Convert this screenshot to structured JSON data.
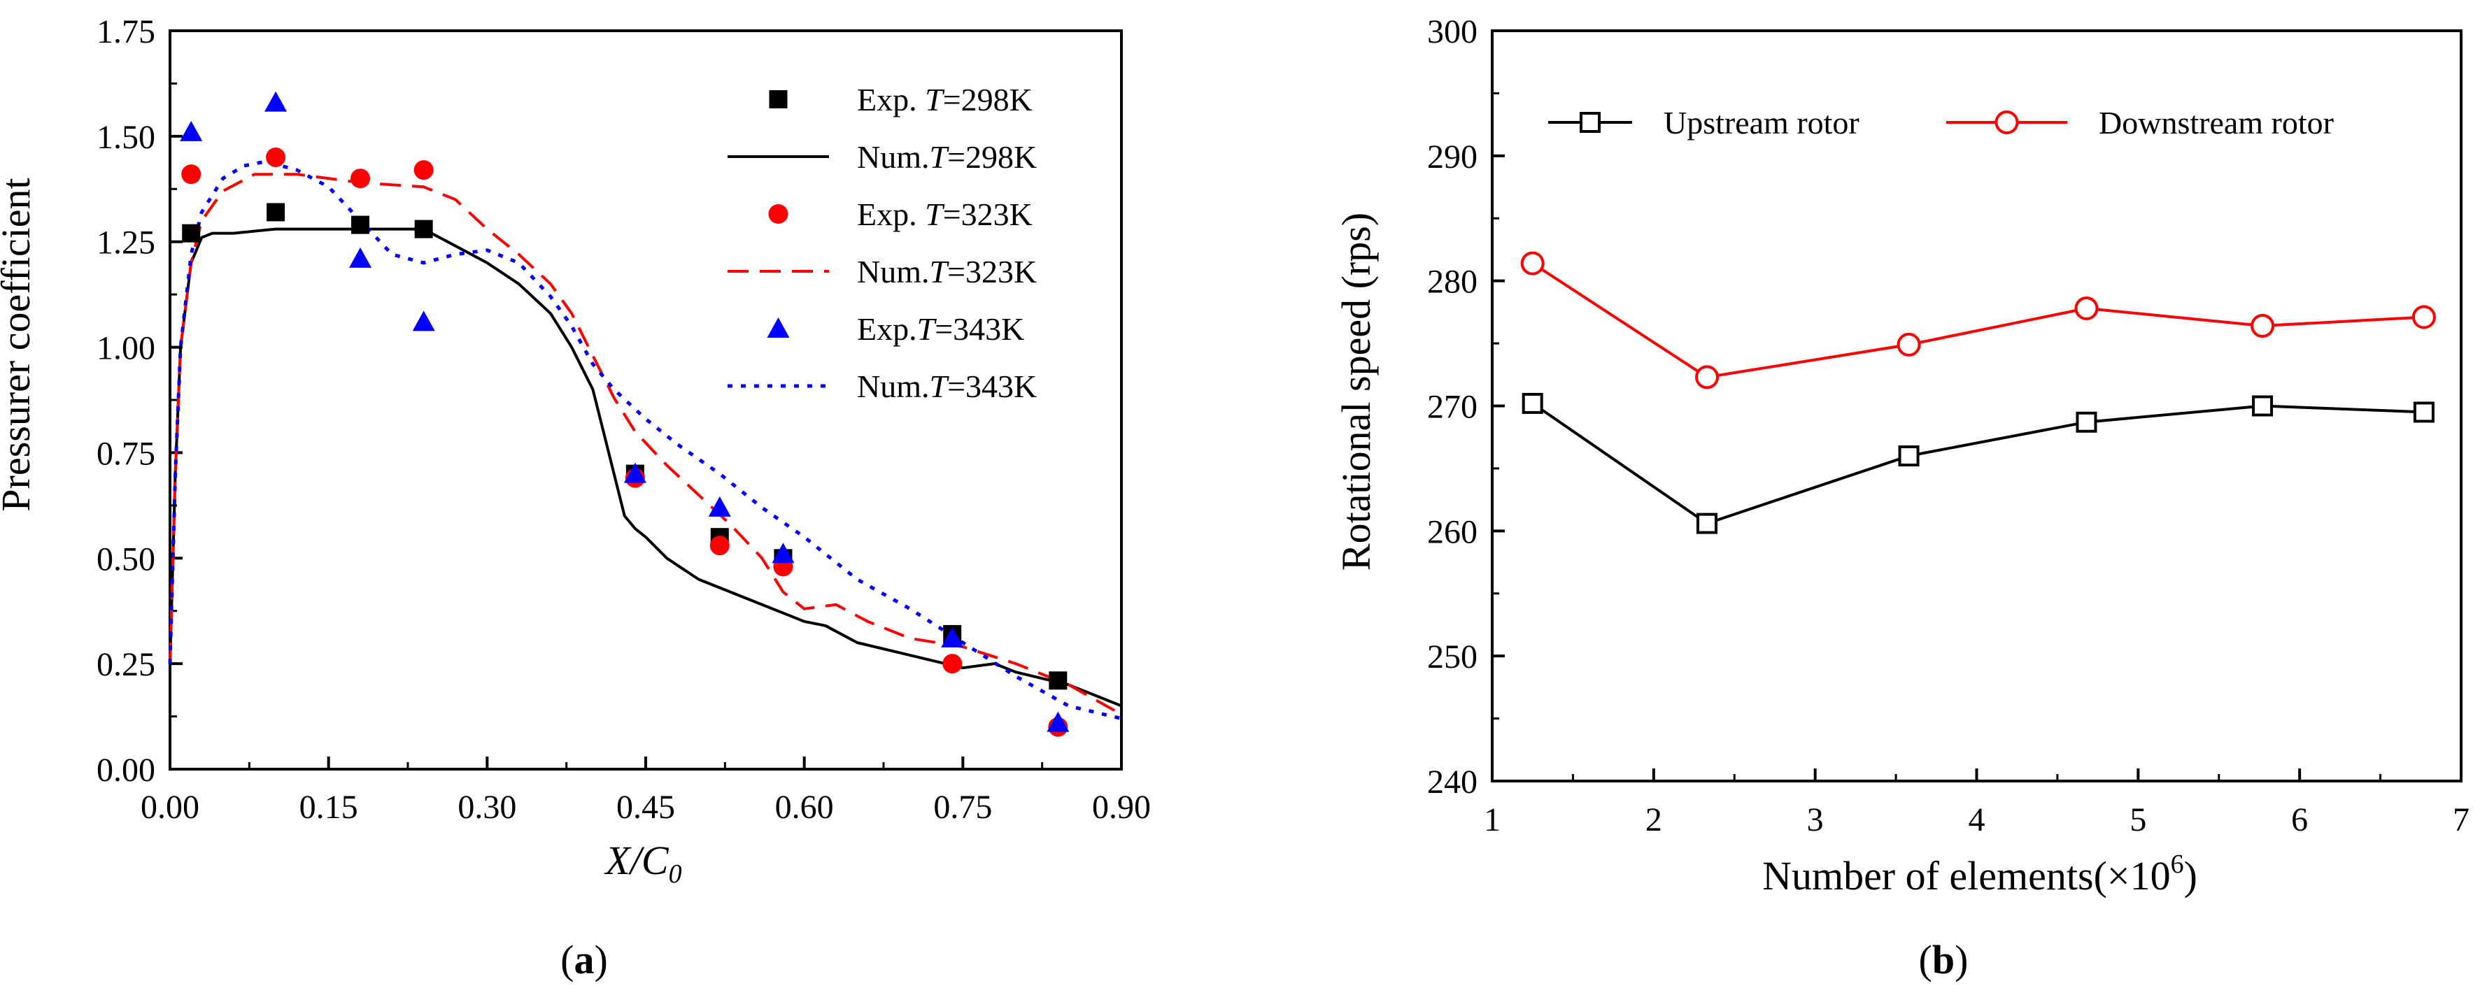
{
  "chart_data": [
    {
      "type": "scatter+line",
      "panel_label": "a",
      "xlabel": "X/C",
      "xlabel_sub": "0",
      "ylabel": "Pressurer coefficient",
      "xlim": [
        0,
        0.9
      ],
      "ylim": [
        0,
        1.75
      ],
      "xticks": [
        "0.00",
        "0.15",
        "0.30",
        "0.45",
        "0.60",
        "0.75",
        "0.90"
      ],
      "yticks": [
        "0.00",
        "0.25",
        "0.50",
        "0.75",
        "1.00",
        "1.25",
        "1.50",
        "1.75"
      ],
      "series": [
        {
          "name": "Exp. T=298K",
          "legend_prefix": "Exp. ",
          "legend_suffix": "=298K",
          "kind": "points",
          "marker": "square",
          "color": "#000000",
          "x": [
            0.02,
            0.1,
            0.18,
            0.24,
            0.44,
            0.52,
            0.58,
            0.74,
            0.84
          ],
          "y": [
            1.27,
            1.32,
            1.29,
            1.28,
            0.7,
            0.55,
            0.5,
            0.32,
            0.21
          ]
        },
        {
          "name": "Num.T=298K",
          "legend_prefix": "Num.",
          "legend_suffix": "=298K",
          "kind": "line",
          "dash": "solid",
          "color": "#000000",
          "x": [
            0.0,
            0.005,
            0.01,
            0.02,
            0.03,
            0.04,
            0.06,
            0.1,
            0.15,
            0.2,
            0.24,
            0.27,
            0.3,
            0.33,
            0.36,
            0.38,
            0.4,
            0.41,
            0.42,
            0.43,
            0.44,
            0.45,
            0.47,
            0.5,
            0.55,
            0.6,
            0.62,
            0.65,
            0.7,
            0.75,
            0.78,
            0.8,
            0.85,
            0.9
          ],
          "y": [
            0.25,
            0.7,
            1.0,
            1.2,
            1.26,
            1.27,
            1.27,
            1.28,
            1.28,
            1.28,
            1.28,
            1.24,
            1.2,
            1.15,
            1.08,
            1.0,
            0.9,
            0.8,
            0.7,
            0.6,
            0.57,
            0.55,
            0.5,
            0.45,
            0.4,
            0.35,
            0.34,
            0.3,
            0.27,
            0.24,
            0.25,
            0.23,
            0.2,
            0.15
          ]
        },
        {
          "name": "Exp. T=323K",
          "legend_prefix": "Exp. ",
          "legend_suffix": "=323K",
          "kind": "points",
          "marker": "circle",
          "color": "#ff0000",
          "x": [
            0.02,
            0.1,
            0.18,
            0.24,
            0.44,
            0.52,
            0.58,
            0.74,
            0.84
          ],
          "y": [
            1.41,
            1.45,
            1.4,
            1.42,
            0.69,
            0.53,
            0.48,
            0.25,
            0.1
          ]
        },
        {
          "name": "Num.T=323K",
          "legend_prefix": "Num.",
          "legend_suffix": "=323K",
          "kind": "line",
          "dash": "dashed",
          "color": "#ff0000",
          "x": [
            0.0,
            0.005,
            0.01,
            0.02,
            0.03,
            0.05,
            0.08,
            0.12,
            0.18,
            0.24,
            0.27,
            0.3,
            0.33,
            0.36,
            0.38,
            0.4,
            0.42,
            0.44,
            0.47,
            0.5,
            0.53,
            0.56,
            0.58,
            0.6,
            0.63,
            0.66,
            0.7,
            0.75,
            0.8,
            0.85,
            0.9
          ],
          "y": [
            0.25,
            0.7,
            1.0,
            1.2,
            1.3,
            1.37,
            1.41,
            1.41,
            1.39,
            1.38,
            1.35,
            1.28,
            1.22,
            1.15,
            1.08,
            0.98,
            0.88,
            0.8,
            0.72,
            0.65,
            0.58,
            0.5,
            0.42,
            0.38,
            0.39,
            0.35,
            0.31,
            0.29,
            0.25,
            0.2,
            0.13
          ]
        },
        {
          "name": "Exp.T=343K",
          "legend_prefix": "Exp.",
          "legend_suffix": "=343K",
          "kind": "points",
          "marker": "triangle",
          "color": "#0000ff",
          "x": [
            0.02,
            0.1,
            0.18,
            0.24,
            0.44,
            0.52,
            0.58,
            0.74,
            0.84
          ],
          "y": [
            1.51,
            1.58,
            1.21,
            1.06,
            0.7,
            0.62,
            0.51,
            0.31,
            0.11
          ]
        },
        {
          "name": "Num.T=343K",
          "legend_prefix": "Num.",
          "legend_suffix": "=343K",
          "kind": "line",
          "dash": "dotted",
          "color": "#0000ff",
          "x": [
            0.0,
            0.005,
            0.01,
            0.02,
            0.03,
            0.05,
            0.07,
            0.09,
            0.12,
            0.15,
            0.18,
            0.21,
            0.24,
            0.27,
            0.3,
            0.33,
            0.36,
            0.38,
            0.4,
            0.42,
            0.45,
            0.48,
            0.52,
            0.56,
            0.6,
            0.65,
            0.7,
            0.75,
            0.8,
            0.85,
            0.9
          ],
          "y": [
            0.25,
            0.7,
            1.0,
            1.22,
            1.32,
            1.4,
            1.43,
            1.44,
            1.42,
            1.38,
            1.3,
            1.22,
            1.2,
            1.22,
            1.23,
            1.2,
            1.12,
            1.05,
            0.96,
            0.9,
            0.83,
            0.77,
            0.7,
            0.62,
            0.55,
            0.45,
            0.38,
            0.3,
            0.22,
            0.15,
            0.12
          ]
        }
      ]
    },
    {
      "type": "line",
      "panel_label": "b",
      "xlabel": "Number of elements(×10",
      "xlabel_sup": "6",
      "xlabel_close": ")",
      "ylabel": "Rotational speed (rps)",
      "xlim": [
        1,
        7
      ],
      "ylim": [
        240,
        300
      ],
      "xticks": [
        "1",
        "2",
        "3",
        "4",
        "5",
        "6",
        "7"
      ],
      "yticks": [
        "240",
        "250",
        "260",
        "270",
        "280",
        "290",
        "300"
      ],
      "series": [
        {
          "name": "Upstream rotor",
          "marker": "square-open",
          "color": "#000000",
          "x": [
            1.25,
            2.33,
            3.58,
            4.68,
            5.77,
            6.77
          ],
          "y": [
            270.2,
            260.6,
            266.0,
            268.7,
            270.0,
            269.5
          ]
        },
        {
          "name": "Downstream rotor",
          "marker": "circle-open",
          "color": "#ff0000",
          "x": [
            1.25,
            2.33,
            3.58,
            4.68,
            5.77,
            6.77
          ],
          "y": [
            281.4,
            272.3,
            274.9,
            277.8,
            276.4,
            277.1
          ]
        }
      ]
    }
  ],
  "captions": {
    "a": "a",
    "b": "b"
  }
}
